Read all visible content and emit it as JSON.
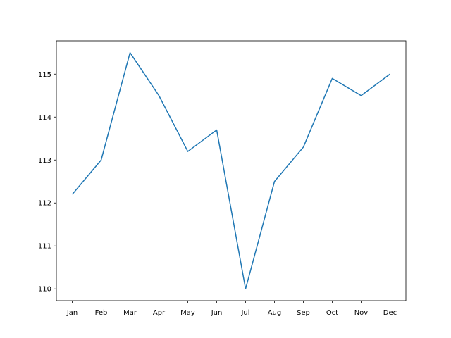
{
  "chart_data": {
    "type": "line",
    "categories": [
      "Jan",
      "Feb",
      "Mar",
      "Apr",
      "May",
      "Jun",
      "Jul",
      "Aug",
      "Sep",
      "Oct",
      "Nov",
      "Dec"
    ],
    "values": [
      112.2,
      113.0,
      115.5,
      114.5,
      113.2,
      113.7,
      110.0,
      112.5,
      113.3,
      114.9,
      114.5,
      115.0
    ],
    "color": "#1f77b4",
    "ylim": [
      109.725,
      115.775
    ],
    "yticks": [
      110,
      111,
      112,
      113,
      114,
      115
    ],
    "grid": false
  }
}
